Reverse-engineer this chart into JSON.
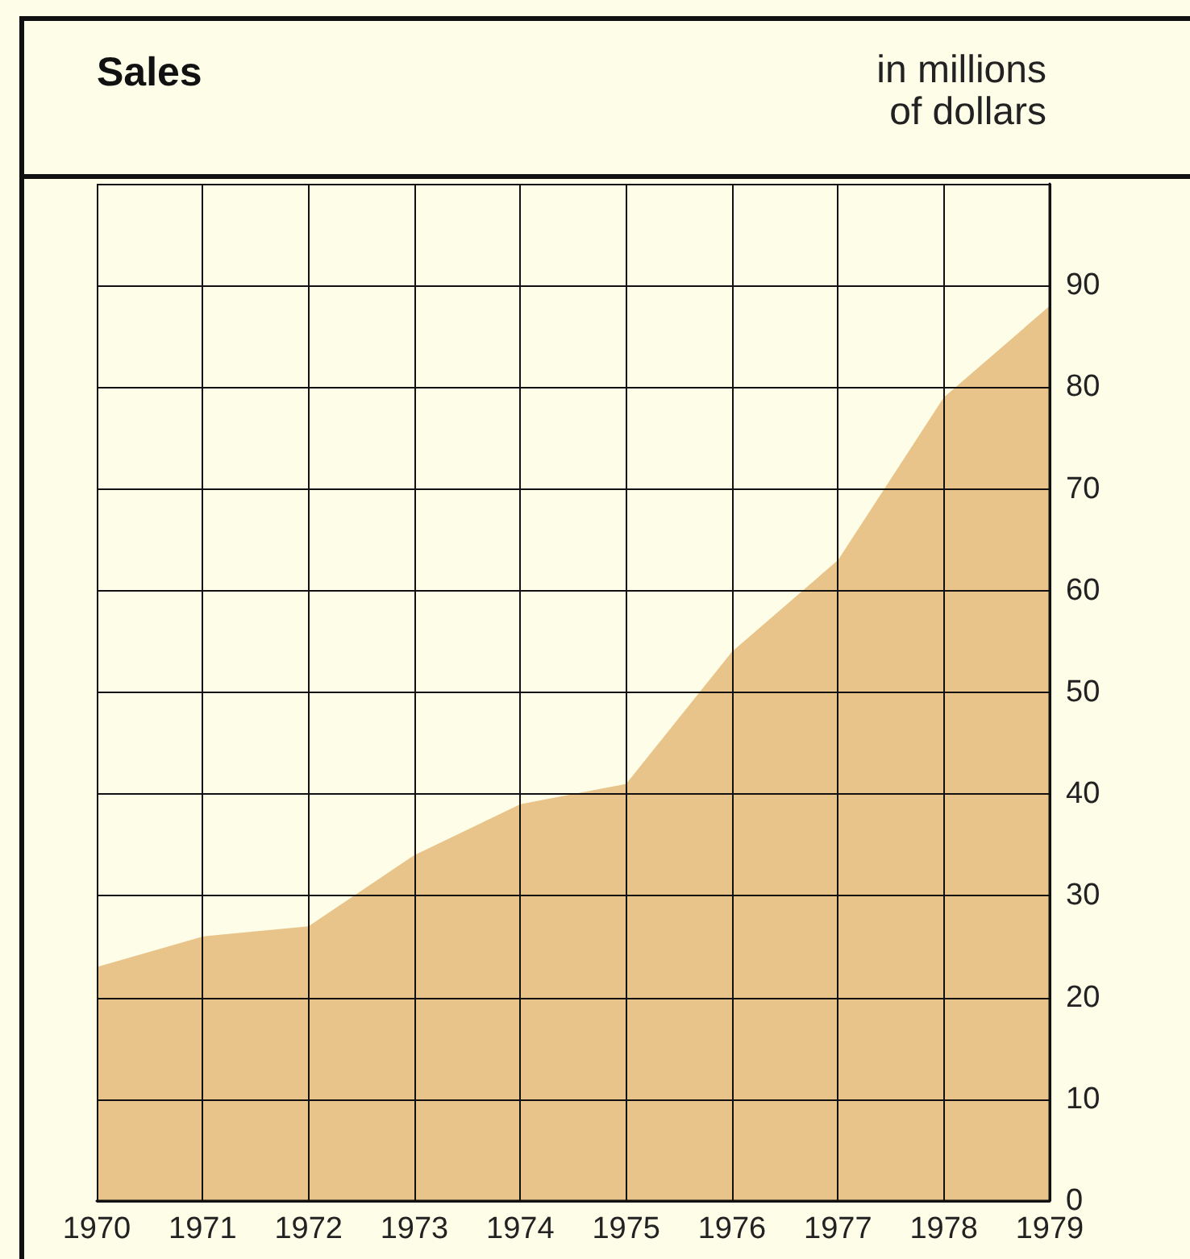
{
  "chart_data": {
    "type": "area",
    "title": "Sales",
    "ylabel": "in millions\nof dollars",
    "x": [
      1970,
      1971,
      1972,
      1973,
      1974,
      1975,
      1976,
      1977,
      1978,
      1979
    ],
    "series": [
      {
        "color": "#e8c48a",
        "values": [
          23,
          26,
          27,
          34,
          39,
          41,
          54,
          63,
          79,
          88
        ]
      }
    ],
    "xlim": [
      1970,
      1979
    ],
    "xticks": [
      1970,
      1971,
      1972,
      1973,
      1974,
      1975,
      1976,
      1977,
      1978,
      1979
    ],
    "ylim": [
      0,
      100
    ],
    "yticks": [
      0,
      10,
      20,
      30,
      40,
      50,
      60,
      70,
      80,
      90
    ],
    "grid": true
  }
}
